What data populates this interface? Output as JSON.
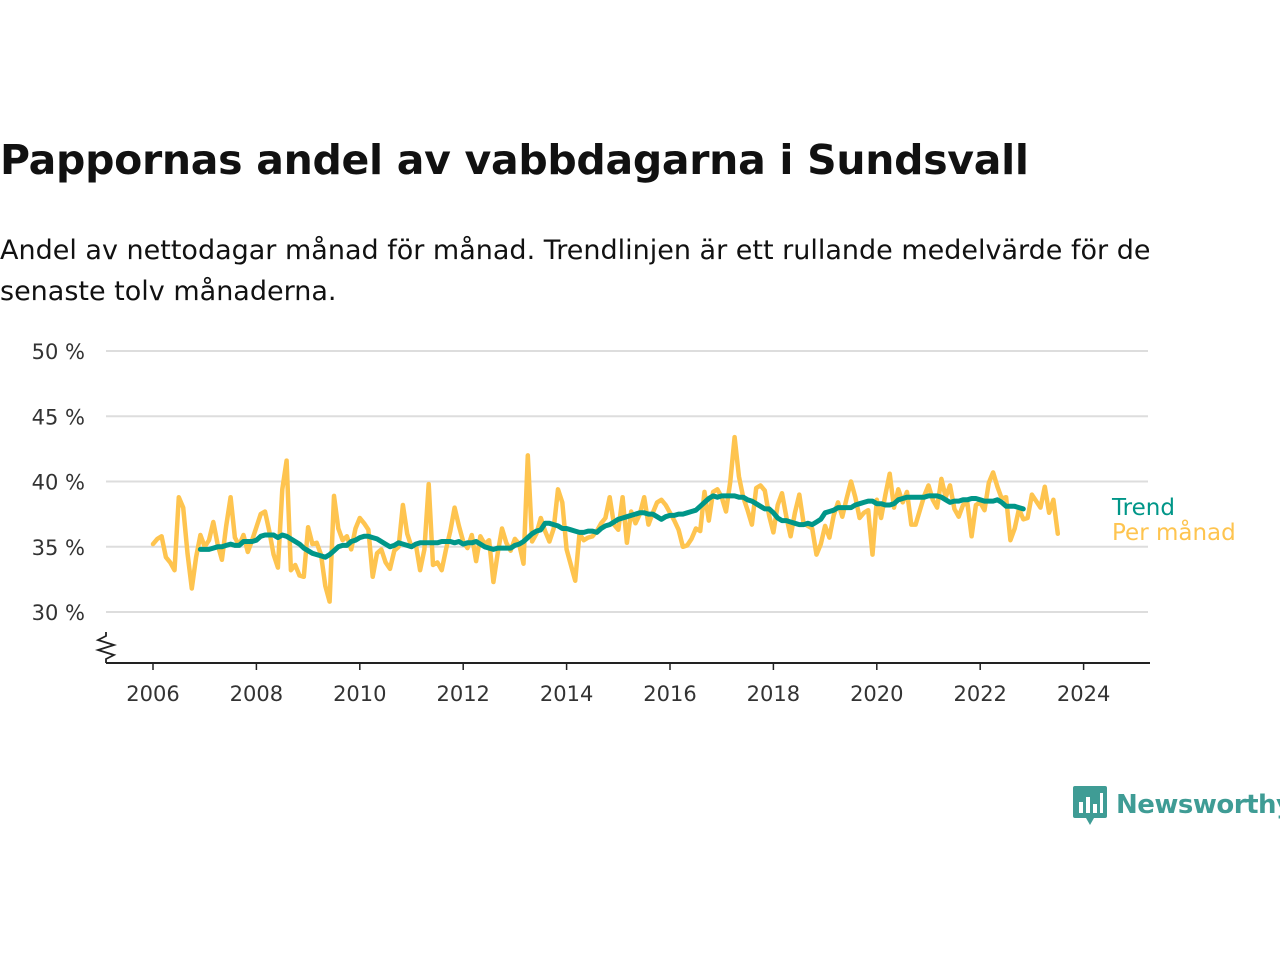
{
  "title": "Pappornas andel av vabbdagarna i Sundsvall",
  "subtitle": "Andel av nettodagar månad för månad. Trendlinjen är ett rullande medelvärde för de senaste tolv månaderna.",
  "brand": {
    "name": "Newsworthy"
  },
  "colors": {
    "monthly": "#fec44f",
    "trend": "#009688",
    "grid": "#dddddd",
    "axis": "#222222",
    "brand": "#3f9c95"
  },
  "chart_data": {
    "type": "line",
    "y_tick_labels": [
      "50 %",
      "45 %",
      "40 %",
      "35 %",
      "30 %"
    ],
    "y_ticks": [
      50,
      45,
      40,
      35,
      30
    ],
    "x_tick_labels": [
      "2006",
      "2008",
      "2010",
      "2012",
      "2014",
      "2016",
      "2018",
      "2020",
      "2022",
      "2024"
    ],
    "x_ticks": [
      2006,
      2008,
      2010,
      2012,
      2014,
      2016,
      2018,
      2020,
      2022,
      2024
    ],
    "ylim": [
      26,
      50
    ],
    "xlim": [
      2005.0,
      2025.2
    ],
    "y_axis_break": true,
    "grid": "horizontal",
    "series": [
      {
        "name": "Per månad",
        "start": "2006-01",
        "values": [
          35.2,
          35.6,
          35.8,
          34.2,
          33.8,
          33.2,
          38.8,
          38.0,
          34.5,
          31.8,
          34.2,
          35.9,
          35.0,
          35.5,
          36.9,
          35.2,
          34.0,
          36.6,
          38.8,
          35.7,
          35.1,
          35.9,
          34.6,
          35.5,
          36.5,
          37.5,
          37.7,
          36.2,
          34.4,
          33.4,
          39.4,
          41.6,
          33.2,
          33.6,
          32.8,
          32.7,
          36.5,
          35.2,
          35.3,
          34.4,
          32.0,
          30.8,
          38.9,
          36.4,
          35.5,
          35.8,
          34.8,
          36.4,
          37.2,
          36.8,
          36.3,
          32.7,
          34.5,
          34.8,
          33.8,
          33.3,
          34.7,
          35.0,
          38.2,
          36.0,
          35.0,
          35.2,
          33.2,
          34.8,
          39.8,
          33.6,
          33.8,
          33.2,
          34.8,
          36.2,
          38.0,
          36.6,
          35.4,
          34.9,
          35.9,
          33.9,
          35.8,
          35.2,
          35.5,
          32.3,
          34.5,
          36.4,
          35.3,
          34.7,
          35.6,
          35.2,
          33.7,
          42.0,
          35.4,
          36.0,
          37.2,
          36.2,
          35.4,
          36.4,
          39.4,
          38.4,
          34.8,
          33.6,
          32.4,
          36.0,
          35.5,
          35.7,
          35.8,
          36.2,
          36.8,
          37.2,
          38.8,
          36.7,
          36.3,
          38.8,
          35.3,
          37.7,
          36.8,
          37.5,
          38.8,
          36.7,
          37.6,
          38.4,
          38.6,
          38.2,
          37.6,
          37.0,
          36.3,
          35.0,
          35.1,
          35.6,
          36.4,
          36.2,
          39.2,
          37.0,
          39.2,
          39.4,
          38.8,
          37.7,
          40.0,
          43.4,
          40.4,
          38.8,
          37.8,
          36.7,
          39.5,
          39.7,
          39.3,
          37.4,
          36.1,
          38.2,
          39.1,
          37.3,
          35.8,
          37.6,
          39.0,
          36.8,
          36.6,
          36.4,
          34.4,
          35.2,
          36.6,
          35.7,
          37.4,
          38.4,
          37.3,
          38.7,
          40.0,
          38.8,
          37.2,
          37.6,
          37.8,
          34.4,
          38.6,
          37.2,
          39.0,
          40.6,
          38.0,
          39.4,
          38.4,
          39.2,
          36.7,
          36.7,
          37.8,
          38.9,
          39.7,
          38.6,
          38.0,
          40.2,
          38.8,
          39.7,
          37.9,
          37.3,
          38.2,
          38.4,
          35.8,
          38.2,
          38.4,
          37.8,
          39.9,
          40.7,
          39.6,
          38.7,
          38.8,
          35.5,
          36.4,
          37.9,
          37.1,
          37.2,
          39.0,
          38.5,
          38.0,
          39.6,
          37.6,
          38.6,
          36.0
        ]
      },
      {
        "name": "Trend",
        "start": "2006-12",
        "values": [
          34.8,
          34.8,
          34.8,
          34.9,
          35.0,
          35.0,
          35.1,
          35.2,
          35.1,
          35.1,
          35.4,
          35.4,
          35.4,
          35.5,
          35.8,
          35.9,
          35.9,
          35.9,
          35.7,
          35.9,
          35.8,
          35.6,
          35.4,
          35.2,
          34.9,
          34.7,
          34.5,
          34.4,
          34.3,
          34.2,
          34.4,
          34.7,
          35.0,
          35.1,
          35.1,
          35.4,
          35.5,
          35.7,
          35.8,
          35.8,
          35.7,
          35.6,
          35.4,
          35.2,
          35.0,
          35.1,
          35.3,
          35.2,
          35.1,
          35.0,
          35.2,
          35.3,
          35.3,
          35.3,
          35.3,
          35.3,
          35.4,
          35.4,
          35.4,
          35.3,
          35.4,
          35.2,
          35.3,
          35.3,
          35.4,
          35.2,
          35.0,
          34.9,
          34.8,
          34.9,
          34.9,
          34.9,
          34.9,
          35.1,
          35.2,
          35.4,
          35.7,
          36.0,
          36.2,
          36.3,
          36.8,
          36.8,
          36.7,
          36.6,
          36.4,
          36.4,
          36.3,
          36.2,
          36.1,
          36.1,
          36.2,
          36.2,
          36.1,
          36.4,
          36.6,
          36.7,
          36.9,
          37.1,
          37.2,
          37.3,
          37.4,
          37.5,
          37.6,
          37.6,
          37.5,
          37.5,
          37.3,
          37.1,
          37.3,
          37.4,
          37.4,
          37.5,
          37.5,
          37.6,
          37.7,
          37.8,
          38.1,
          38.4,
          38.7,
          38.9,
          38.8,
          38.9,
          38.9,
          38.9,
          38.9,
          38.8,
          38.8,
          38.6,
          38.5,
          38.3,
          38.1,
          37.9,
          37.9,
          37.6,
          37.2,
          37.0,
          37.0,
          36.9,
          36.8,
          36.7,
          36.7,
          36.8,
          36.7,
          36.9,
          37.1,
          37.6,
          37.7,
          37.8,
          38.0,
          38.0,
          38.0,
          38.0,
          38.2,
          38.3,
          38.4,
          38.5,
          38.5,
          38.3,
          38.3,
          38.2,
          38.2,
          38.3,
          38.6,
          38.7,
          38.8,
          38.8,
          38.8,
          38.8,
          38.8,
          38.9,
          38.9,
          38.9,
          38.8,
          38.6,
          38.4,
          38.5,
          38.5,
          38.6,
          38.6,
          38.7,
          38.7,
          38.6,
          38.5,
          38.5,
          38.5,
          38.6,
          38.4,
          38.1,
          38.1,
          38.1,
          38.0,
          37.9
        ]
      }
    ],
    "end_labels": {
      "trend": "Trend",
      "monthly": "Per månad"
    }
  }
}
